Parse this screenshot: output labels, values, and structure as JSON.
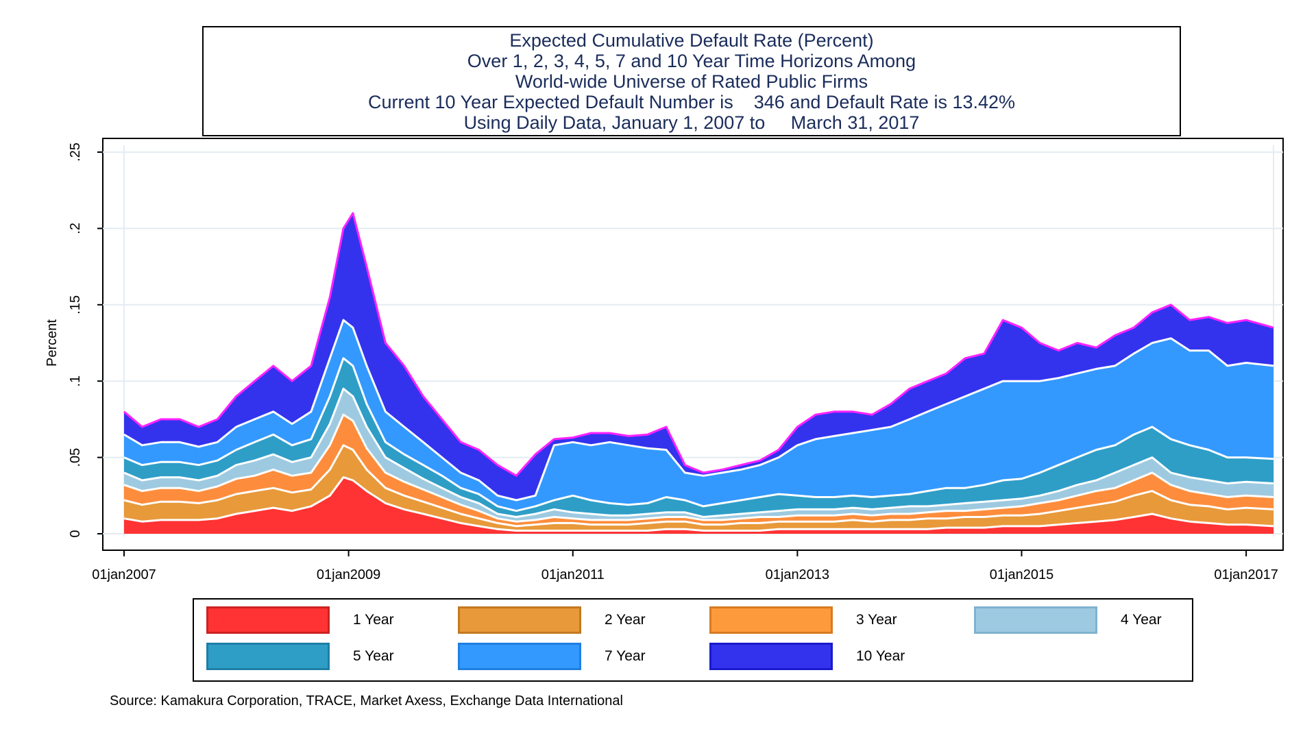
{
  "title_lines": [
    "Expected Cumulative Default Rate (Percent)",
    "Over 1, 2, 3, 4, 5, 7 and 10 Year Time Horizons Among",
    "World-wide Universe of Rated Public Firms",
    "Current 10 Year Expected Default Number is    346 and Default Rate is 13.42%",
    "Using Daily Data, January 1, 2007 to     March 31, 2017"
  ],
  "source": "Source: Kamakura Corporation,  TRACE, Market Axess, Exchange Data International",
  "chart_data": {
    "type": "area",
    "stacked": false,
    "ylabel": "Percent",
    "ylim": [
      0,
      0.25
    ],
    "yticks": [
      0,
      0.05,
      0.1,
      0.15,
      0.2,
      0.25
    ],
    "ytick_labels": [
      "0",
      ".05",
      ".1",
      ".15",
      ".2",
      ".25"
    ],
    "xlim": [
      "2007-01-01",
      "2017-03-31"
    ],
    "xticks": [
      "2007-01-01",
      "2009-01-01",
      "2011-01-01",
      "2013-01-01",
      "2015-01-01",
      "2017-01-01"
    ],
    "xtick_labels": [
      "01jan2007",
      "01jan2009",
      "01jan2011",
      "01jan2013",
      "01jan2015",
      "01jan2017"
    ],
    "grid": "horizontal",
    "legend_position": "bottom",
    "x": [
      "2007-01-01",
      "2007-03-01",
      "2007-05-01",
      "2007-07-01",
      "2007-09-01",
      "2007-11-01",
      "2008-01-01",
      "2008-03-01",
      "2008-05-01",
      "2008-07-01",
      "2008-09-01",
      "2008-11-01",
      "2008-12-15",
      "2009-01-15",
      "2009-03-01",
      "2009-05-01",
      "2009-07-01",
      "2009-09-01",
      "2009-11-01",
      "2010-01-01",
      "2010-03-01",
      "2010-05-01",
      "2010-07-01",
      "2010-09-01",
      "2010-11-01",
      "2011-01-01",
      "2011-03-01",
      "2011-05-01",
      "2011-07-01",
      "2011-09-01",
      "2011-11-01",
      "2012-01-01",
      "2012-03-01",
      "2012-05-01",
      "2012-07-01",
      "2012-09-01",
      "2012-11-01",
      "2013-01-01",
      "2013-03-01",
      "2013-05-01",
      "2013-07-01",
      "2013-09-01",
      "2013-11-01",
      "2014-01-01",
      "2014-03-01",
      "2014-05-01",
      "2014-07-01",
      "2014-09-01",
      "2014-11-01",
      "2015-01-01",
      "2015-03-01",
      "2015-05-01",
      "2015-07-01",
      "2015-09-01",
      "2015-11-01",
      "2016-01-01",
      "2016-03-01",
      "2016-05-01",
      "2016-07-01",
      "2016-09-01",
      "2016-11-01",
      "2017-01-01",
      "2017-03-31"
    ],
    "series": [
      {
        "name": "10 Year",
        "color": "#3333ee",
        "edge": "#ff22ff",
        "values": [
          0.08,
          0.07,
          0.075,
          0.075,
          0.07,
          0.075,
          0.09,
          0.1,
          0.11,
          0.1,
          0.11,
          0.155,
          0.2,
          0.21,
          0.175,
          0.125,
          0.11,
          0.09,
          0.075,
          0.06,
          0.055,
          0.045,
          0.038,
          0.052,
          0.062,
          0.063,
          0.066,
          0.066,
          0.064,
          0.065,
          0.07,
          0.045,
          0.04,
          0.042,
          0.045,
          0.048,
          0.055,
          0.07,
          0.078,
          0.08,
          0.08,
          0.078,
          0.085,
          0.095,
          0.1,
          0.105,
          0.115,
          0.118,
          0.14,
          0.135,
          0.125,
          0.12,
          0.125,
          0.122,
          0.13,
          0.135,
          0.145,
          0.15,
          0.14,
          0.142,
          0.138,
          0.14,
          0.135
        ]
      },
      {
        "name": "7 Year",
        "color": "#3399ff",
        "edge": "#ffffff",
        "values": [
          0.065,
          0.058,
          0.06,
          0.06,
          0.057,
          0.06,
          0.07,
          0.075,
          0.08,
          0.072,
          0.08,
          0.115,
          0.14,
          0.135,
          0.11,
          0.08,
          0.07,
          0.06,
          0.05,
          0.04,
          0.035,
          0.025,
          0.022,
          0.025,
          0.058,
          0.06,
          0.058,
          0.06,
          0.058,
          0.056,
          0.055,
          0.04,
          0.038,
          0.04,
          0.042,
          0.045,
          0.05,
          0.058,
          0.062,
          0.064,
          0.066,
          0.068,
          0.07,
          0.075,
          0.08,
          0.085,
          0.09,
          0.095,
          0.1,
          0.1,
          0.1,
          0.102,
          0.105,
          0.108,
          0.11,
          0.118,
          0.125,
          0.128,
          0.12,
          0.12,
          0.11,
          0.112,
          0.11
        ]
      },
      {
        "name": "5 Year",
        "color": "#2e9ec7",
        "edge": "#ffffff",
        "values": [
          0.05,
          0.045,
          0.047,
          0.047,
          0.045,
          0.048,
          0.055,
          0.06,
          0.065,
          0.058,
          0.062,
          0.09,
          0.115,
          0.11,
          0.085,
          0.06,
          0.052,
          0.045,
          0.038,
          0.03,
          0.026,
          0.018,
          0.015,
          0.018,
          0.022,
          0.025,
          0.022,
          0.02,
          0.019,
          0.02,
          0.024,
          0.022,
          0.018,
          0.02,
          0.022,
          0.024,
          0.026,
          0.025,
          0.024,
          0.024,
          0.025,
          0.024,
          0.025,
          0.026,
          0.028,
          0.03,
          0.03,
          0.032,
          0.035,
          0.036,
          0.04,
          0.045,
          0.05,
          0.055,
          0.058,
          0.065,
          0.07,
          0.062,
          0.058,
          0.055,
          0.05,
          0.05,
          0.049
        ]
      },
      {
        "name": "4 Year",
        "color": "#9ecae1",
        "edge": "#ffffff",
        "values": [
          0.04,
          0.035,
          0.037,
          0.037,
          0.035,
          0.038,
          0.045,
          0.048,
          0.052,
          0.047,
          0.05,
          0.072,
          0.095,
          0.09,
          0.07,
          0.05,
          0.043,
          0.036,
          0.03,
          0.024,
          0.02,
          0.013,
          0.011,
          0.013,
          0.016,
          0.014,
          0.013,
          0.012,
          0.012,
          0.013,
          0.014,
          0.014,
          0.011,
          0.012,
          0.013,
          0.014,
          0.015,
          0.016,
          0.016,
          0.016,
          0.017,
          0.016,
          0.017,
          0.018,
          0.018,
          0.019,
          0.02,
          0.021,
          0.022,
          0.023,
          0.025,
          0.028,
          0.032,
          0.035,
          0.04,
          0.045,
          0.05,
          0.04,
          0.037,
          0.035,
          0.033,
          0.034,
          0.033
        ]
      },
      {
        "name": "3 Year",
        "color": "#fd8d3c",
        "edge": "#ffffff",
        "values": [
          0.032,
          0.028,
          0.03,
          0.03,
          0.028,
          0.031,
          0.036,
          0.038,
          0.042,
          0.038,
          0.04,
          0.058,
          0.078,
          0.074,
          0.056,
          0.04,
          0.034,
          0.029,
          0.024,
          0.019,
          0.015,
          0.01,
          0.008,
          0.009,
          0.011,
          0.01,
          0.009,
          0.009,
          0.009,
          0.01,
          0.011,
          0.011,
          0.009,
          0.009,
          0.01,
          0.011,
          0.011,
          0.012,
          0.012,
          0.012,
          0.013,
          0.012,
          0.013,
          0.013,
          0.014,
          0.015,
          0.015,
          0.016,
          0.017,
          0.018,
          0.02,
          0.022,
          0.025,
          0.028,
          0.03,
          0.035,
          0.04,
          0.032,
          0.028,
          0.026,
          0.024,
          0.025,
          0.024
        ]
      },
      {
        "name": "2 Year",
        "color": "#e8993a",
        "edge": "#ffffff",
        "values": [
          0.022,
          0.019,
          0.021,
          0.021,
          0.02,
          0.022,
          0.026,
          0.028,
          0.03,
          0.027,
          0.029,
          0.042,
          0.058,
          0.055,
          0.042,
          0.03,
          0.025,
          0.021,
          0.017,
          0.013,
          0.01,
          0.007,
          0.005,
          0.006,
          0.007,
          0.007,
          0.006,
          0.006,
          0.006,
          0.007,
          0.008,
          0.008,
          0.006,
          0.006,
          0.007,
          0.007,
          0.008,
          0.008,
          0.008,
          0.008,
          0.009,
          0.008,
          0.009,
          0.009,
          0.01,
          0.01,
          0.011,
          0.011,
          0.012,
          0.012,
          0.013,
          0.015,
          0.017,
          0.019,
          0.021,
          0.025,
          0.028,
          0.022,
          0.019,
          0.018,
          0.016,
          0.017,
          0.016
        ]
      },
      {
        "name": "1 Year",
        "color": "#ff3333",
        "edge": "#ffffff",
        "values": [
          0.01,
          0.008,
          0.009,
          0.009,
          0.009,
          0.01,
          0.013,
          0.015,
          0.017,
          0.015,
          0.018,
          0.025,
          0.037,
          0.035,
          0.028,
          0.02,
          0.016,
          0.013,
          0.01,
          0.007,
          0.005,
          0.003,
          0.002,
          0.002,
          0.002,
          0.002,
          0.002,
          0.002,
          0.002,
          0.002,
          0.003,
          0.003,
          0.002,
          0.002,
          0.002,
          0.002,
          0.003,
          0.003,
          0.003,
          0.003,
          0.003,
          0.003,
          0.003,
          0.003,
          0.003,
          0.004,
          0.004,
          0.004,
          0.005,
          0.005,
          0.005,
          0.006,
          0.007,
          0.008,
          0.009,
          0.011,
          0.013,
          0.01,
          0.008,
          0.007,
          0.006,
          0.006,
          0.005
        ]
      }
    ]
  },
  "legend": [
    {
      "name": "1 Year",
      "color": "#ff3333",
      "border": "#cc2222"
    },
    {
      "name": "2 Year",
      "color": "#e8993a",
      "border": "#c27a22"
    },
    {
      "name": "3 Year",
      "color": "#fd9a3c",
      "border": "#d87a22"
    },
    {
      "name": "4 Year",
      "color": "#9ecae1",
      "border": "#7fb2d0"
    },
    {
      "name": "5 Year",
      "color": "#2e9ec7",
      "border": "#1e7ea7"
    },
    {
      "name": "7 Year",
      "color": "#3399ff",
      "border": "#1f7fe0"
    },
    {
      "name": "10 Year",
      "color": "#3333ee",
      "border": "#1a1acc"
    }
  ]
}
